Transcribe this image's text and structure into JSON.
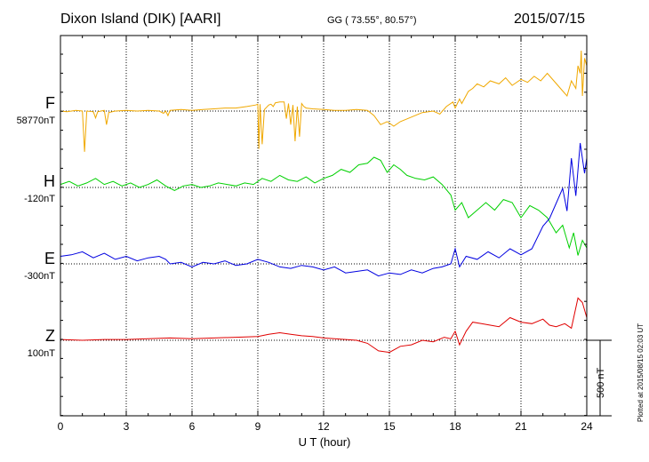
{
  "header": {
    "station": "Dixon Island (DIK)  [AARI]",
    "coords": "GG ( 73.55°,  80.57°)",
    "date": "2015/07/15"
  },
  "plotted_note": "Plotted at 2015/08/15 02:03 UT",
  "chart_data": {
    "type": "line",
    "xlabel": "U T (hour)",
    "xlim": [
      0,
      24
    ],
    "xticks": [
      "0",
      "3",
      "6",
      "9",
      "12",
      "15",
      "18",
      "21",
      "24"
    ],
    "scale_bar": "500 nT",
    "scale_bar_nT": 500,
    "series": [
      {
        "name": "F",
        "baseline_label": "58770nT",
        "color": "#f0a800",
        "x": [
          0,
          0.3,
          0.7,
          1,
          1.1,
          1.2,
          1.5,
          1.6,
          1.7,
          2,
          2.1,
          2.2,
          2.5,
          3,
          3.5,
          4,
          4.5,
          4.7,
          4.8,
          4.9,
          5,
          5.5,
          6,
          6.5,
          7,
          7.5,
          8,
          8.5,
          8.9,
          9,
          9.05,
          9.1,
          9.2,
          9.3,
          9.5,
          9.6,
          9.7,
          9.8,
          10,
          10.2,
          10.3,
          10.4,
          10.5,
          10.6,
          10.7,
          10.8,
          10.9,
          11,
          11.1,
          11.2,
          11.5,
          12,
          12.5,
          13,
          13.5,
          14,
          14.3,
          14.6,
          14.9,
          15.2,
          15.5,
          16,
          16.5,
          17,
          17.3,
          17.6,
          17.9,
          18,
          18.2,
          18.3,
          18.6,
          18.8,
          19,
          19.3,
          19.6,
          20,
          20.3,
          20.6,
          21,
          21.3,
          21.6,
          21.9,
          22.2,
          22.5,
          22.8,
          23.1,
          23.3,
          23.5,
          23.6,
          23.7,
          23.75,
          23.8,
          23.9,
          24
        ],
        "y": [
          0,
          -5,
          5,
          0,
          -270,
          0,
          -5,
          -45,
          -5,
          5,
          -90,
          -10,
          0,
          5,
          0,
          5,
          0,
          -15,
          0,
          -30,
          5,
          10,
          5,
          10,
          15,
          20,
          20,
          30,
          40,
          45,
          -250,
          45,
          -220,
          10,
          40,
          45,
          30,
          55,
          60,
          60,
          -50,
          50,
          -90,
          40,
          -200,
          30,
          -170,
          50,
          30,
          20,
          15,
          10,
          5,
          5,
          10,
          5,
          -30,
          -90,
          -70,
          -100,
          -70,
          -40,
          -10,
          0,
          -20,
          30,
          60,
          20,
          80,
          50,
          130,
          150,
          180,
          160,
          200,
          180,
          220,
          170,
          210,
          190,
          230,
          200,
          250,
          200,
          150,
          100,
          200,
          150,
          300,
          250,
          400,
          100,
          350,
          300
        ]
      },
      {
        "name": "H",
        "baseline_label": "-120nT",
        "color": "#00d000",
        "x": [
          0,
          0.4,
          0.8,
          1.2,
          1.6,
          2,
          2.4,
          2.8,
          3.2,
          3.6,
          4,
          4.4,
          4.8,
          5.2,
          5.6,
          6,
          6.4,
          6.8,
          7.2,
          7.6,
          8,
          8.4,
          8.8,
          9.2,
          9.6,
          10,
          10.4,
          10.8,
          11.2,
          11.6,
          12,
          12.4,
          12.8,
          13.2,
          13.6,
          14,
          14.3,
          14.6,
          14.9,
          15.2,
          15.5,
          15.8,
          16.2,
          16.6,
          17,
          17.4,
          17.8,
          18,
          18.3,
          18.6,
          19,
          19.4,
          19.8,
          20.2,
          20.6,
          21,
          21.4,
          21.8,
          22.2,
          22.6,
          22.9,
          23.2,
          23.4,
          23.6,
          23.8,
          24
        ],
        "y": [
          20,
          40,
          10,
          30,
          60,
          20,
          40,
          10,
          30,
          0,
          20,
          50,
          10,
          -20,
          10,
          20,
          0,
          10,
          30,
          20,
          10,
          30,
          20,
          60,
          40,
          80,
          50,
          40,
          70,
          30,
          60,
          80,
          120,
          100,
          150,
          160,
          200,
          180,
          100,
          150,
          120,
          80,
          60,
          50,
          70,
          20,
          -50,
          -150,
          -100,
          -200,
          -150,
          -100,
          -150,
          -80,
          -100,
          -200,
          -120,
          -150,
          -200,
          -300,
          -250,
          -400,
          -300,
          -450,
          -350,
          -400
        ]
      },
      {
        "name": "E",
        "baseline_label": "-300nT",
        "color": "#0000e0",
        "x": [
          0,
          0.5,
          1,
          1.5,
          2,
          2.5,
          3,
          3.5,
          4,
          4.5,
          4.8,
          5,
          5.5,
          6,
          6.5,
          7,
          7.5,
          8,
          8.5,
          9,
          9.5,
          10,
          10.5,
          11,
          11.5,
          12,
          12.5,
          13,
          13.5,
          14,
          14.5,
          15,
          15.5,
          16,
          16.5,
          17,
          17.4,
          17.8,
          18,
          18.2,
          18.5,
          19,
          19.5,
          20,
          20.5,
          21,
          21.5,
          22,
          22.3,
          22.6,
          22.9,
          23.1,
          23.3,
          23.5,
          23.7,
          23.9,
          24
        ],
        "y": [
          50,
          60,
          80,
          40,
          70,
          30,
          50,
          20,
          40,
          50,
          30,
          0,
          10,
          -20,
          10,
          0,
          20,
          -10,
          0,
          30,
          10,
          -20,
          -30,
          -10,
          -20,
          -40,
          -20,
          -60,
          -50,
          -40,
          -80,
          -60,
          -70,
          -40,
          -60,
          -30,
          -20,
          0,
          100,
          -20,
          50,
          30,
          80,
          40,
          100,
          60,
          100,
          250,
          300,
          400,
          500,
          350,
          700,
          450,
          800,
          600,
          700
        ]
      },
      {
        "name": "Z",
        "baseline_label": "100nT",
        "color": "#e00000",
        "x": [
          0,
          1,
          2,
          3,
          4,
          5,
          6,
          7,
          8,
          9,
          9.5,
          10,
          10.5,
          11,
          11.5,
          12,
          12.5,
          13,
          13.5,
          14,
          14.5,
          15,
          15.5,
          16,
          16.5,
          17,
          17.5,
          17.8,
          18,
          18.2,
          18.5,
          18.8,
          19.2,
          19.6,
          20,
          20.5,
          21,
          21.5,
          22,
          22.3,
          22.6,
          23,
          23.3,
          23.6,
          23.8,
          24
        ],
        "y": [
          5,
          0,
          5,
          5,
          10,
          15,
          10,
          15,
          20,
          25,
          40,
          50,
          40,
          30,
          25,
          15,
          10,
          5,
          0,
          -20,
          -70,
          -80,
          -40,
          -30,
          0,
          -10,
          20,
          10,
          60,
          -30,
          60,
          120,
          110,
          100,
          90,
          150,
          120,
          110,
          140,
          100,
          90,
          110,
          80,
          280,
          250,
          150
        ]
      }
    ]
  }
}
